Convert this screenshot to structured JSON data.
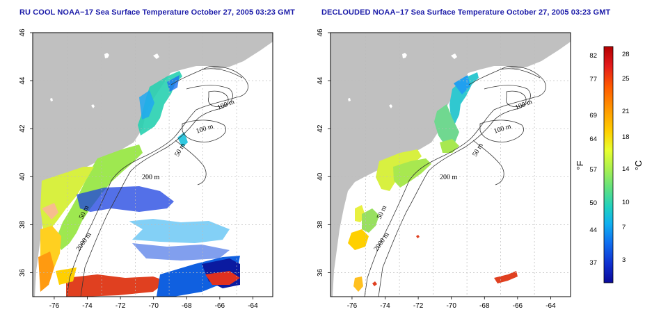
{
  "titles": {
    "left": "RU COOL NOAA−17 Sea Surface Temperature October 27, 2005 03:23 GMT",
    "right": "DECLOUDED NOAA−17 Sea Surface Temperature October 27, 2005 03:23 GMT"
  },
  "axes": {
    "lon_ticks": [
      "-76",
      "-74",
      "-72",
      "-70",
      "-68",
      "-66",
      "-64"
    ],
    "lon_values": [
      -76,
      -74,
      -72,
      -70,
      -68,
      -66,
      -64
    ],
    "lat_ticks": [
      "36",
      "38",
      "40",
      "42",
      "44",
      "46"
    ],
    "lat_values": [
      36,
      38,
      40,
      42,
      44,
      46
    ],
    "lon_range": [
      -77.3,
      -62.8
    ],
    "lat_range": [
      35.0,
      46.0
    ]
  },
  "contour_labels": {
    "left": [
      "100 m",
      "100 m",
      "50 m",
      "200 m",
      "50 m",
      "2000 m"
    ],
    "right": [
      "100 m",
      "100 m",
      "50 m",
      "200 m",
      "50 m",
      "2000 m"
    ]
  },
  "colorbar": {
    "fahrenheit_unit": "°F",
    "celsius_unit": "°C",
    "fahrenheit_labels": [
      "82",
      "77",
      "69",
      "64",
      "57",
      "50",
      "44",
      "37"
    ],
    "celsius_labels": [
      "28",
      "25",
      "21",
      "18",
      "14",
      "10",
      "7",
      "3"
    ],
    "colors_top_to_bottom": [
      "#b30000",
      "#e31a1c",
      "#ff5a00",
      "#ff9a00",
      "#ffd000",
      "#e8ff30",
      "#a8f050",
      "#60e080",
      "#20d0c0",
      "#10b0f0",
      "#1070f0",
      "#1030d0",
      "#0a0a9a"
    ]
  },
  "colors": {
    "land": "#c0c0c0",
    "contour": "#333333",
    "grid": "#bbbbbb",
    "title": "#1a1aa8"
  }
}
